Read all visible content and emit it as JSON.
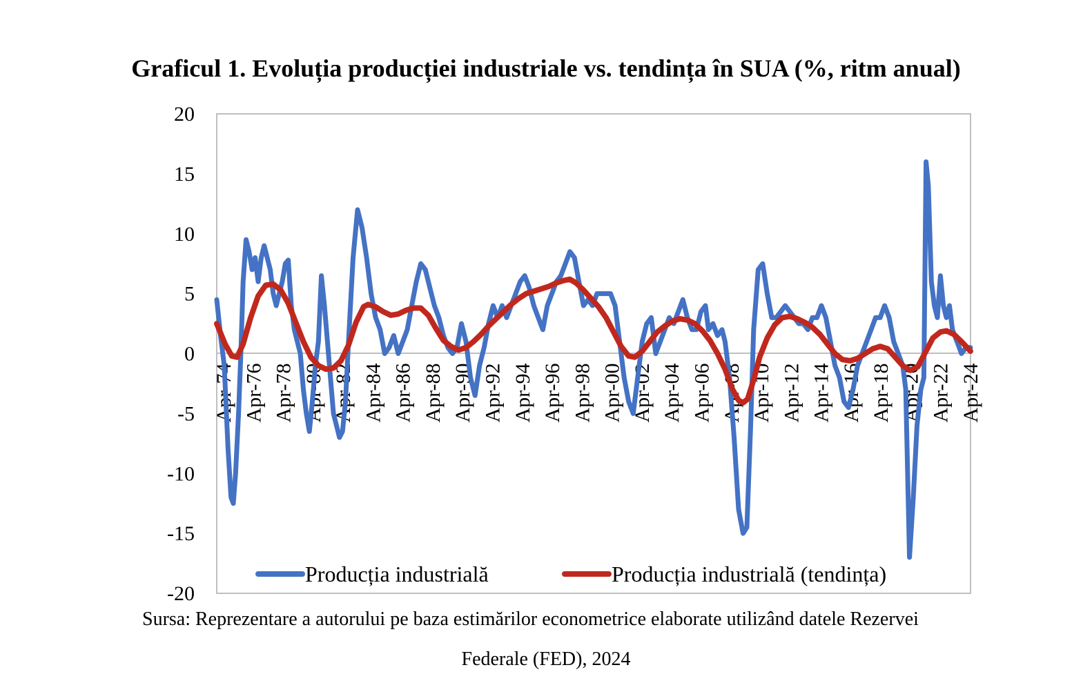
{
  "chart_data": {
    "type": "line",
    "title": "Graficul 1. Evoluția producției industriale vs. tendința în SUA (%, ritm anual)",
    "xlabel": "",
    "ylabel": "",
    "ylim": [
      -20,
      20
    ],
    "yticks": [
      "20",
      "15",
      "10",
      "5",
      "0",
      "-5",
      "-10",
      "-15",
      "-20"
    ],
    "x_tick_labels": [
      "Apr-74",
      "Apr-76",
      "Apr-78",
      "Apr-80",
      "Apr-82",
      "Apr-84",
      "Apr-86",
      "Apr-88",
      "Apr-90",
      "Apr-92",
      "Apr-94",
      "Apr-96",
      "Apr-98",
      "Apr-00",
      "Apr-02",
      "Apr-04",
      "Apr-06",
      "Apr-08",
      "Apr-10",
      "Apr-12",
      "Apr-14",
      "Apr-16",
      "Apr-18",
      "Apr-20",
      "Apr-22",
      "Apr-24"
    ],
    "xlim_years": [
      1974.25,
      2024.3
    ],
    "grid": false,
    "legend_position": "bottom",
    "series": [
      {
        "name": "Producția industrială",
        "color": "#4472C4",
        "points": [
          [
            1974.25,
            4.5
          ],
          [
            1974.5,
            1.5
          ],
          [
            1974.75,
            -1
          ],
          [
            1975.0,
            -8
          ],
          [
            1975.2,
            -12
          ],
          [
            1975.35,
            -12.5
          ],
          [
            1975.5,
            -10
          ],
          [
            1975.7,
            -5
          ],
          [
            1975.85,
            0
          ],
          [
            1976.0,
            6
          ],
          [
            1976.2,
            9.5
          ],
          [
            1976.4,
            8.5
          ],
          [
            1976.6,
            7
          ],
          [
            1976.8,
            8
          ],
          [
            1977.0,
            6
          ],
          [
            1977.2,
            8
          ],
          [
            1977.4,
            9
          ],
          [
            1977.6,
            8
          ],
          [
            1977.8,
            7
          ],
          [
            1978.0,
            5
          ],
          [
            1978.2,
            4
          ],
          [
            1978.4,
            5
          ],
          [
            1978.6,
            6
          ],
          [
            1978.8,
            7.5
          ],
          [
            1979.0,
            7.8
          ],
          [
            1979.2,
            4
          ],
          [
            1979.4,
            2
          ],
          [
            1979.6,
            1
          ],
          [
            1979.8,
            0
          ],
          [
            1980.0,
            -3
          ],
          [
            1980.2,
            -5
          ],
          [
            1980.4,
            -6.5
          ],
          [
            1980.6,
            -4
          ],
          [
            1980.8,
            -1
          ],
          [
            1981.0,
            1
          ],
          [
            1981.2,
            6.5
          ],
          [
            1981.4,
            4
          ],
          [
            1981.6,
            1
          ],
          [
            1981.8,
            -2
          ],
          [
            1982.0,
            -5
          ],
          [
            1982.2,
            -6
          ],
          [
            1982.4,
            -7
          ],
          [
            1982.6,
            -6.5
          ],
          [
            1982.8,
            -4
          ],
          [
            1983.0,
            1
          ],
          [
            1983.3,
            8
          ],
          [
            1983.6,
            12
          ],
          [
            1983.9,
            10.5
          ],
          [
            1984.2,
            8
          ],
          [
            1984.5,
            5
          ],
          [
            1984.8,
            3
          ],
          [
            1985.1,
            2
          ],
          [
            1985.4,
            0
          ],
          [
            1985.7,
            0.5
          ],
          [
            1986.0,
            1.5
          ],
          [
            1986.3,
            0
          ],
          [
            1986.6,
            1
          ],
          [
            1986.9,
            2
          ],
          [
            1987.2,
            4
          ],
          [
            1987.5,
            6
          ],
          [
            1987.8,
            7.5
          ],
          [
            1988.1,
            7
          ],
          [
            1988.4,
            5.5
          ],
          [
            1988.7,
            4
          ],
          [
            1989.0,
            3
          ],
          [
            1989.3,
            1.5
          ],
          [
            1989.6,
            0.5
          ],
          [
            1989.9,
            0
          ],
          [
            1990.2,
            0.5
          ],
          [
            1990.5,
            2.5
          ],
          [
            1990.8,
            1
          ],
          [
            1991.1,
            -2
          ],
          [
            1991.4,
            -3.5
          ],
          [
            1991.7,
            -1
          ],
          [
            1992.0,
            0.5
          ],
          [
            1992.3,
            2.5
          ],
          [
            1992.6,
            4
          ],
          [
            1992.9,
            3
          ],
          [
            1993.2,
            4
          ],
          [
            1993.5,
            3
          ],
          [
            1993.8,
            4
          ],
          [
            1994.1,
            5
          ],
          [
            1994.4,
            6
          ],
          [
            1994.7,
            6.5
          ],
          [
            1995.0,
            5.5
          ],
          [
            1995.3,
            4
          ],
          [
            1995.6,
            3
          ],
          [
            1995.9,
            2
          ],
          [
            1996.2,
            4
          ],
          [
            1996.5,
            5
          ],
          [
            1996.8,
            6
          ],
          [
            1997.1,
            6.5
          ],
          [
            1997.4,
            7.5
          ],
          [
            1997.7,
            8.5
          ],
          [
            1998.0,
            8
          ],
          [
            1998.3,
            6
          ],
          [
            1998.6,
            4
          ],
          [
            1998.9,
            4.5
          ],
          [
            1999.2,
            4
          ],
          [
            1999.5,
            5
          ],
          [
            1999.8,
            5
          ],
          [
            2000.1,
            5
          ],
          [
            2000.4,
            5
          ],
          [
            2000.7,
            4
          ],
          [
            2001.0,
            1
          ],
          [
            2001.3,
            -2
          ],
          [
            2001.6,
            -4
          ],
          [
            2001.9,
            -5
          ],
          [
            2002.2,
            -2
          ],
          [
            2002.5,
            1
          ],
          [
            2002.8,
            2.5
          ],
          [
            2003.1,
            3
          ],
          [
            2003.4,
            0
          ],
          [
            2003.7,
            1
          ],
          [
            2004.0,
            2
          ],
          [
            2004.3,
            3
          ],
          [
            2004.6,
            2.5
          ],
          [
            2004.9,
            3.5
          ],
          [
            2005.2,
            4.5
          ],
          [
            2005.5,
            3
          ],
          [
            2005.8,
            2
          ],
          [
            2006.1,
            2
          ],
          [
            2006.4,
            3.5
          ],
          [
            2006.7,
            4
          ],
          [
            2006.9,
            2
          ],
          [
            2007.2,
            2.5
          ],
          [
            2007.5,
            1.5
          ],
          [
            2007.8,
            2
          ],
          [
            2008.0,
            1
          ],
          [
            2008.3,
            -2
          ],
          [
            2008.6,
            -7
          ],
          [
            2008.9,
            -13
          ],
          [
            2009.2,
            -15
          ],
          [
            2009.45,
            -14.5
          ],
          [
            2009.7,
            -6
          ],
          [
            2009.9,
            2
          ],
          [
            2010.2,
            7
          ],
          [
            2010.5,
            7.5
          ],
          [
            2010.8,
            5
          ],
          [
            2011.1,
            3
          ],
          [
            2011.4,
            3
          ],
          [
            2011.7,
            3.5
          ],
          [
            2012.0,
            4
          ],
          [
            2012.3,
            3.5
          ],
          [
            2012.6,
            3
          ],
          [
            2012.9,
            2.5
          ],
          [
            2013.2,
            2.5
          ],
          [
            2013.5,
            2
          ],
          [
            2013.8,
            3
          ],
          [
            2014.1,
            3
          ],
          [
            2014.4,
            4
          ],
          [
            2014.7,
            3
          ],
          [
            2015.0,
            1
          ],
          [
            2015.3,
            -1
          ],
          [
            2015.6,
            -2
          ],
          [
            2015.9,
            -4
          ],
          [
            2016.2,
            -4.5
          ],
          [
            2016.5,
            -3
          ],
          [
            2016.8,
            -1
          ],
          [
            2017.1,
            0
          ],
          [
            2017.4,
            1
          ],
          [
            2017.7,
            2
          ],
          [
            2018.0,
            3
          ],
          [
            2018.3,
            3
          ],
          [
            2018.6,
            4
          ],
          [
            2018.9,
            3
          ],
          [
            2019.2,
            1
          ],
          [
            2019.5,
            0
          ],
          [
            2019.8,
            -1
          ],
          [
            2020.0,
            -3
          ],
          [
            2020.25,
            -17
          ],
          [
            2020.5,
            -12
          ],
          [
            2020.75,
            -6
          ],
          [
            2021.0,
            -3
          ],
          [
            2021.2,
            -2
          ],
          [
            2021.35,
            16
          ],
          [
            2021.5,
            14
          ],
          [
            2021.7,
            6
          ],
          [
            2021.9,
            4
          ],
          [
            2022.1,
            3
          ],
          [
            2022.3,
            6.5
          ],
          [
            2022.5,
            4
          ],
          [
            2022.7,
            3
          ],
          [
            2022.9,
            4
          ],
          [
            2023.1,
            2
          ],
          [
            2023.4,
            1
          ],
          [
            2023.7,
            0
          ],
          [
            2024.0,
            0.5
          ],
          [
            2024.3,
            0.5
          ]
        ]
      },
      {
        "name": "Producția industrială (tendința)",
        "color": "#C0281E",
        "points": [
          [
            1974.25,
            2.5
          ],
          [
            1974.8,
            0.8
          ],
          [
            1975.25,
            -0.2
          ],
          [
            1975.6,
            -0.3
          ],
          [
            1976.0,
            0.8
          ],
          [
            1976.5,
            3
          ],
          [
            1977.0,
            4.8
          ],
          [
            1977.5,
            5.7
          ],
          [
            1978.0,
            5.8
          ],
          [
            1978.5,
            5.3
          ],
          [
            1979.0,
            4.2
          ],
          [
            1979.5,
            2.6
          ],
          [
            1980.0,
            1
          ],
          [
            1980.5,
            -0.3
          ],
          [
            1981.0,
            -1
          ],
          [
            1981.5,
            -1.3
          ],
          [
            1982.0,
            -1.2
          ],
          [
            1982.5,
            -0.6
          ],
          [
            1983.0,
            0.7
          ],
          [
            1983.5,
            2.6
          ],
          [
            1984.0,
            3.9
          ],
          [
            1984.3,
            4.1
          ],
          [
            1984.8,
            3.9
          ],
          [
            1985.3,
            3.5
          ],
          [
            1985.8,
            3.2
          ],
          [
            1986.3,
            3.3
          ],
          [
            1986.8,
            3.6
          ],
          [
            1987.3,
            3.8
          ],
          [
            1987.8,
            3.8
          ],
          [
            1988.3,
            3.2
          ],
          [
            1988.8,
            2.1
          ],
          [
            1989.3,
            1.1
          ],
          [
            1989.8,
            0.6
          ],
          [
            1990.3,
            0.3
          ],
          [
            1990.8,
            0.5
          ],
          [
            1991.3,
            1
          ],
          [
            1991.8,
            1.6
          ],
          [
            1992.3,
            2.3
          ],
          [
            1992.8,
            2.9
          ],
          [
            1993.3,
            3.5
          ],
          [
            1993.8,
            4.1
          ],
          [
            1994.3,
            4.6
          ],
          [
            1994.8,
            5
          ],
          [
            1995.3,
            5.2
          ],
          [
            1995.8,
            5.4
          ],
          [
            1996.3,
            5.6
          ],
          [
            1996.8,
            5.9
          ],
          [
            1997.3,
            6.1
          ],
          [
            1997.7,
            6.2
          ],
          [
            1998.1,
            5.9
          ],
          [
            1998.6,
            5.3
          ],
          [
            1999.1,
            4.6
          ],
          [
            1999.6,
            3.9
          ],
          [
            2000.1,
            3
          ],
          [
            2000.6,
            1.8
          ],
          [
            2001.1,
            0.6
          ],
          [
            2001.6,
            -0.2
          ],
          [
            2002.0,
            -0.3
          ],
          [
            2002.5,
            0.2
          ],
          [
            2003.0,
            1
          ],
          [
            2003.5,
            1.8
          ],
          [
            2004.0,
            2.3
          ],
          [
            2004.5,
            2.7
          ],
          [
            2005.0,
            2.9
          ],
          [
            2005.5,
            2.8
          ],
          [
            2006.0,
            2.5
          ],
          [
            2006.5,
            1.9
          ],
          [
            2007.0,
            1.1
          ],
          [
            2007.5,
            0
          ],
          [
            2008.0,
            -1.3
          ],
          [
            2008.5,
            -3
          ],
          [
            2008.9,
            -3.9
          ],
          [
            2009.2,
            -4.1
          ],
          [
            2009.5,
            -3.8
          ],
          [
            2009.9,
            -2.2
          ],
          [
            2010.3,
            -0.3
          ],
          [
            2010.8,
            1.3
          ],
          [
            2011.3,
            2.4
          ],
          [
            2011.8,
            3
          ],
          [
            2012.3,
            3.1
          ],
          [
            2012.8,
            2.9
          ],
          [
            2013.3,
            2.6
          ],
          [
            2013.8,
            2.2
          ],
          [
            2014.3,
            1.6
          ],
          [
            2014.8,
            0.8
          ],
          [
            2015.3,
            0
          ],
          [
            2015.8,
            -0.5
          ],
          [
            2016.3,
            -0.6
          ],
          [
            2016.8,
            -0.4
          ],
          [
            2017.3,
            0
          ],
          [
            2017.8,
            0.4
          ],
          [
            2018.3,
            0.6
          ],
          [
            2018.8,
            0.4
          ],
          [
            2019.3,
            -0.3
          ],
          [
            2019.8,
            -1
          ],
          [
            2020.3,
            -1.4
          ],
          [
            2020.8,
            -1.1
          ],
          [
            2021.3,
            0.1
          ],
          [
            2021.8,
            1.3
          ],
          [
            2022.3,
            1.8
          ],
          [
            2022.7,
            1.9
          ],
          [
            2023.2,
            1.6
          ],
          [
            2023.7,
            1
          ],
          [
            2024.0,
            0.6
          ],
          [
            2024.3,
            0.2
          ]
        ]
      }
    ]
  },
  "source_line1": "Sursa: Reprezentare a autorului pe baza estimărilor econometrice elaborate utilizând datele Rezervei",
  "source_line2": "Federale (FED), 2024"
}
